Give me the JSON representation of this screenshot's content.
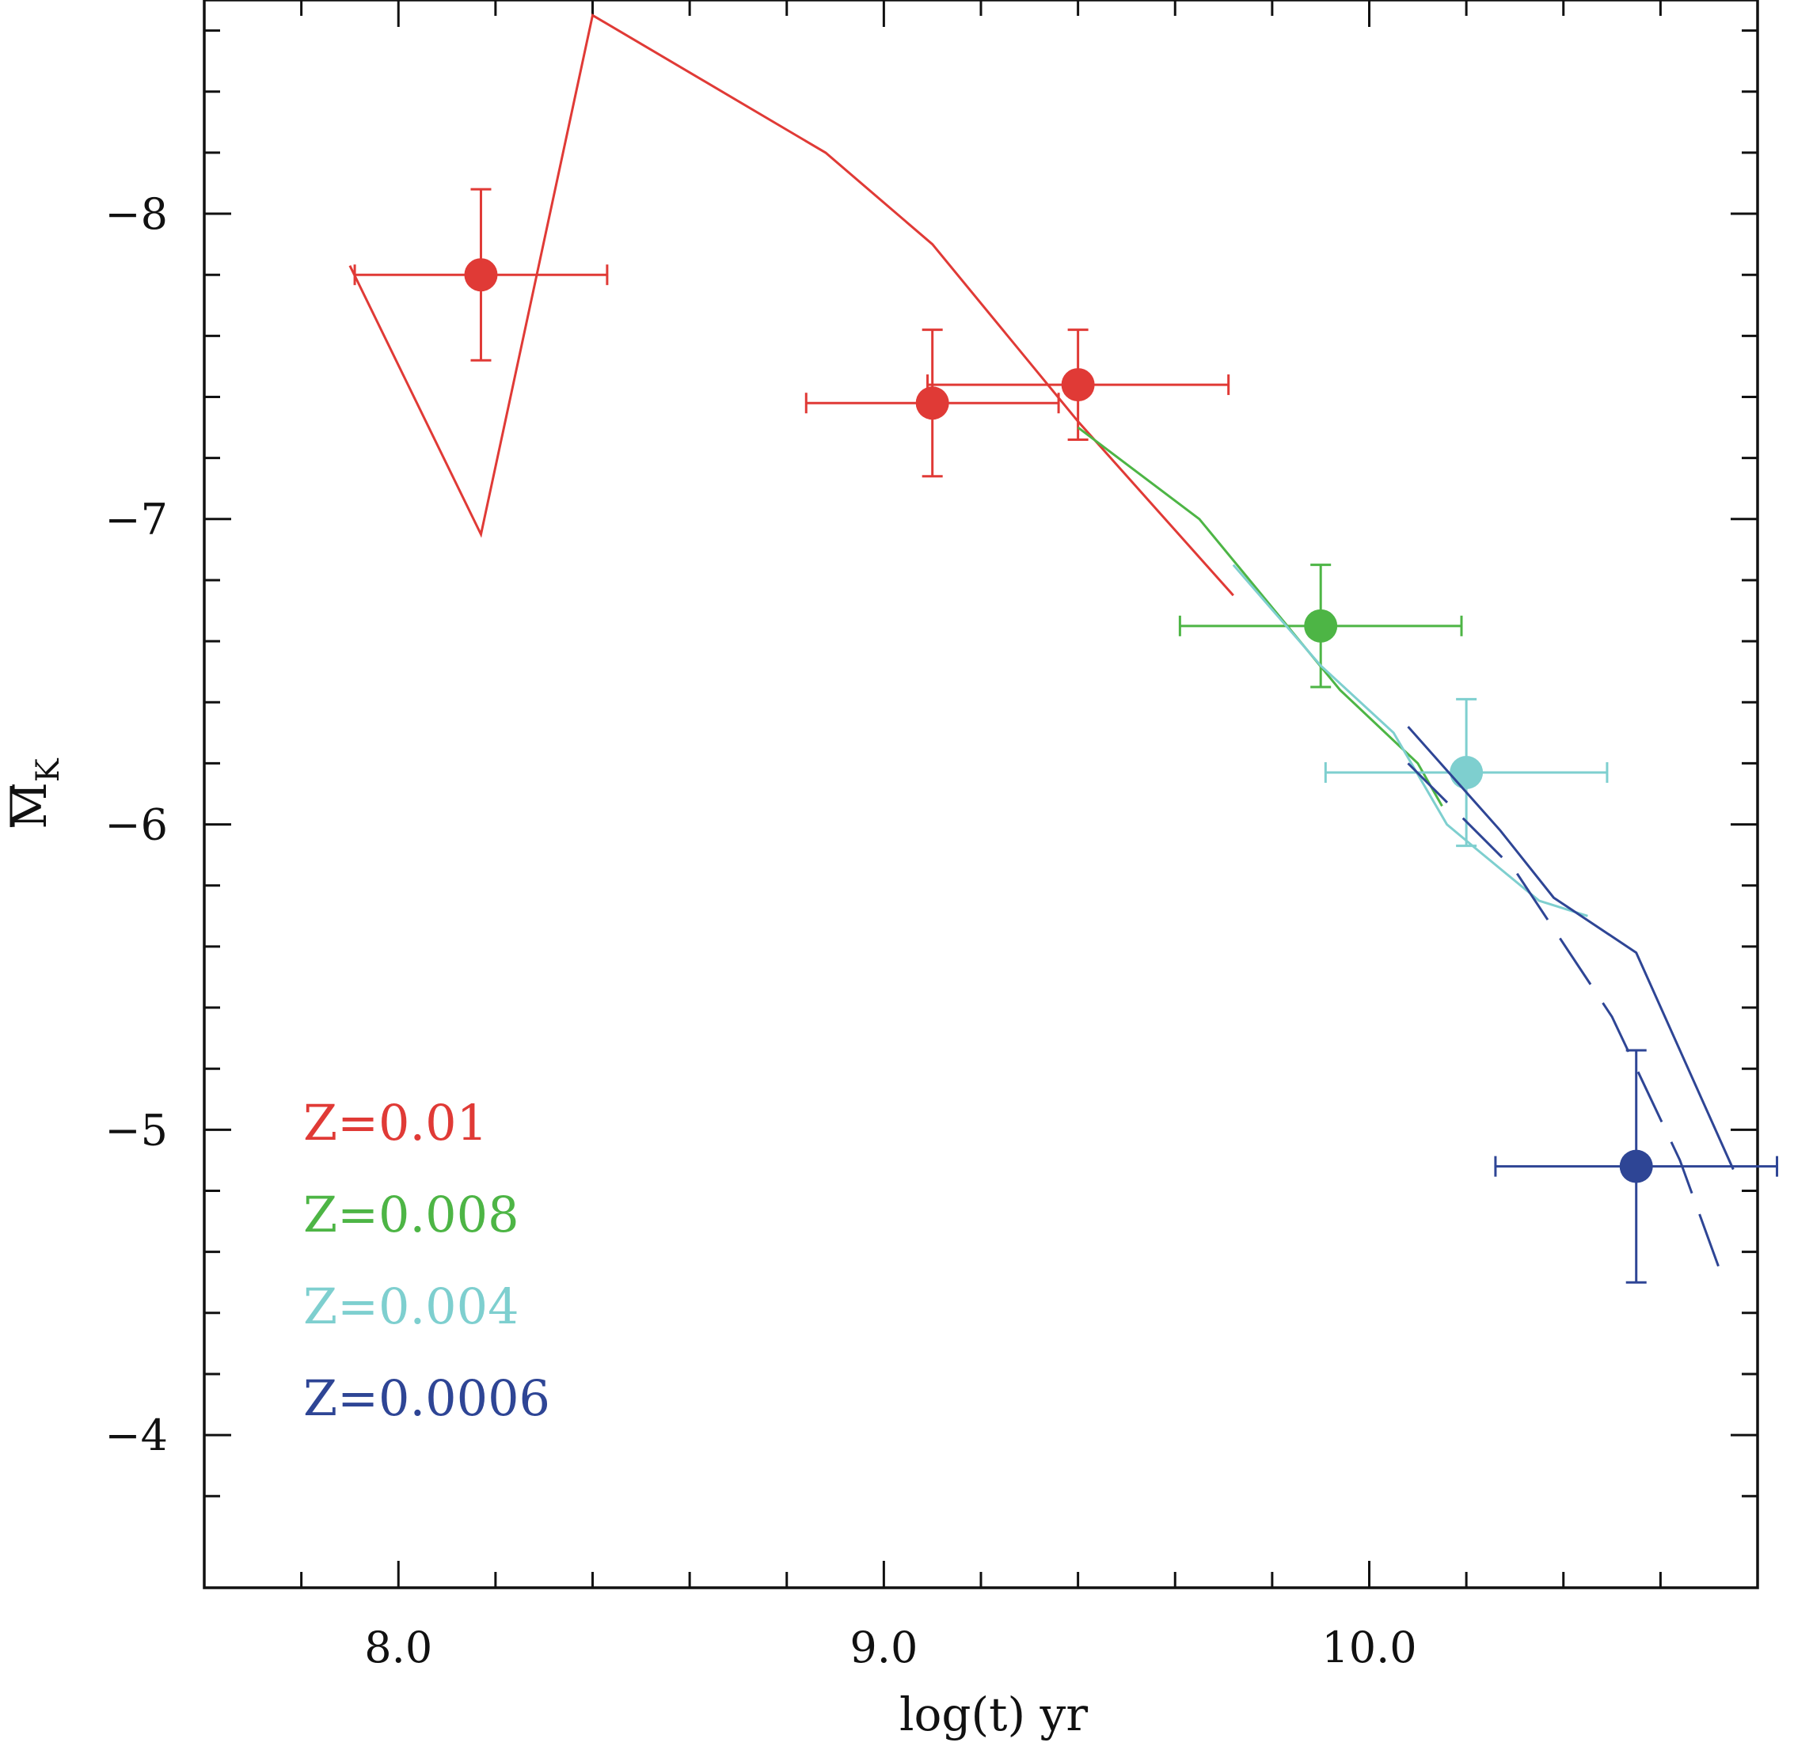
{
  "chart_data": {
    "type": "scatter",
    "xlabel": "log(t) yr",
    "ylabel": "M",
    "ylabel_subscript": "K",
    "xlim": [
      7.6,
      10.8
    ],
    "ylim": [
      -3.5,
      -8.7
    ],
    "y_inverted": true,
    "x_ticks": [
      "8.0",
      "9.0",
      "10.0"
    ],
    "y_ticks": [
      "−8",
      "−7",
      "−6",
      "−5",
      "−4"
    ],
    "legend_position": "lower-left",
    "series": [
      {
        "name": "Z=0.01",
        "color": "#e03a36",
        "line": [
          [
            7.9,
            -7.83
          ],
          [
            8.17,
            -6.95
          ],
          [
            8.4,
            -8.65
          ],
          [
            8.88,
            -8.2
          ],
          [
            9.1,
            -7.9
          ],
          [
            9.4,
            -7.32
          ],
          [
            9.72,
            -6.75
          ]
        ],
        "points": [
          {
            "x": 8.17,
            "y": -7.8,
            "xerr": 0.26,
            "yerr": 0.28
          },
          {
            "x": 9.1,
            "y": -7.38,
            "xerr": 0.26,
            "yerr": 0.24
          },
          {
            "x": 9.4,
            "y": -7.44,
            "xerr": 0.31,
            "yerr": 0.18
          }
        ]
      },
      {
        "name": "Z=0.008",
        "color": "#4db545",
        "line": [
          [
            9.4,
            -7.3
          ],
          [
            9.65,
            -7.0
          ],
          [
            9.94,
            -6.44
          ],
          [
            10.1,
            -6.2
          ],
          [
            10.15,
            -6.06
          ]
        ],
        "points": [
          {
            "x": 9.9,
            "y": -6.65,
            "xerr": 0.29,
            "yerr": 0.2
          }
        ]
      },
      {
        "name": "Z=0.004",
        "color": "#7ecfcf",
        "line": [
          [
            9.72,
            -6.85
          ],
          [
            9.9,
            -6.52
          ],
          [
            10.05,
            -6.3
          ],
          [
            10.16,
            -6.0
          ],
          [
            10.22,
            -5.92
          ],
          [
            10.35,
            -5.75
          ],
          [
            10.45,
            -5.7
          ]
        ],
        "points": [
          {
            "x": 10.2,
            "y": -6.17,
            "xerr": 0.29,
            "yerr": 0.24
          }
        ]
      },
      {
        "name": "Z=0.0006",
        "color": "#2e4595",
        "line": [
          [
            10.08,
            -6.32
          ],
          [
            10.27,
            -5.98
          ],
          [
            10.38,
            -5.76
          ],
          [
            10.55,
            -5.58
          ],
          [
            10.75,
            -4.87
          ]
        ],
        "dashed_line": [
          [
            10.08,
            -6.2
          ],
          [
            10.3,
            -5.85
          ],
          [
            10.5,
            -5.37
          ],
          [
            10.64,
            -4.9
          ],
          [
            10.72,
            -4.55
          ]
        ],
        "points": [
          {
            "x": 10.55,
            "y": -4.88,
            "xerr": 0.29,
            "yerr": 0.38
          }
        ]
      }
    ]
  }
}
